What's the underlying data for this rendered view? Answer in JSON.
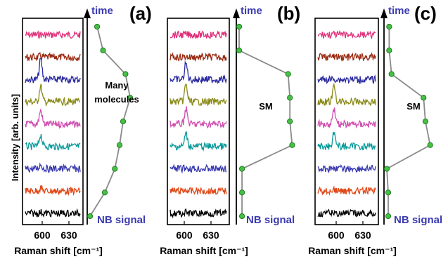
{
  "chart_data": {
    "type": "line",
    "ylabel": "Intensity [arb. units]",
    "colors": {
      "spectra": [
        "#e0307a",
        "#9a2a12",
        "#2a2aa0",
        "#8a8a18",
        "#d050b0",
        "#0a9a9a",
        "#3a3ab0",
        "#e04a1a",
        "#000000"
      ],
      "time_line": "#8a8a8a",
      "marker_fill": "#48c048",
      "marker_edge": "#1a7a1a",
      "label_blue": "#3a3ab0"
    },
    "panels": [
      {
        "label": "(a)",
        "xlabel": "Raman shift [cm⁻¹]",
        "xticks": [
          "600",
          "630"
        ],
        "time_label": "time",
        "bottom_label": "NB signal",
        "annotation": [
          "Many",
          "molecules"
        ],
        "peak_heights": [
          0.02,
          0.05,
          0.95,
          0.75,
          0.65,
          0.55,
          0.2,
          0.15,
          0.05
        ],
        "nb_signal": [
          0.12,
          0.22,
          0.6,
          0.68,
          0.56,
          0.5,
          0.42,
          0.25,
          0.0
        ]
      },
      {
        "label": "(b)",
        "xlabel": "Raman shift [cm⁻¹]",
        "xticks": [
          "600",
          "630"
        ],
        "time_label": "time",
        "bottom_label": "NB signal",
        "annotation": [
          "SM"
        ],
        "peak_heights": [
          0.02,
          0.03,
          0.75,
          0.8,
          0.72,
          0.6,
          0.05,
          0.04,
          0.03
        ],
        "nb_signal": [
          0.0,
          0.0,
          0.85,
          0.88,
          0.88,
          0.92,
          0.05,
          0.05,
          0.05
        ]
      },
      {
        "label": "(c)",
        "xlabel": "Raman shift [cm⁻¹]",
        "xticks": [
          "600",
          "630"
        ],
        "time_label": "time",
        "bottom_label": "NB signal",
        "annotation": [
          "SM"
        ],
        "peak_heights": [
          0.02,
          0.03,
          0.04,
          0.7,
          0.75,
          0.7,
          0.05,
          0.04,
          0.03
        ],
        "nb_signal": [
          0.05,
          0.05,
          0.1,
          0.78,
          0.82,
          0.92,
          0.0,
          0.03,
          0.03
        ]
      }
    ]
  }
}
